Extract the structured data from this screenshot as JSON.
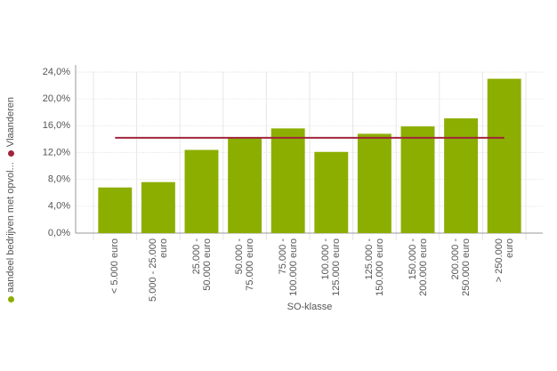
{
  "chart_data": {
    "type": "bar",
    "x_label": "SO-klasse",
    "categories": [
      "< 5.000 euro",
      "5.000 - 25.000 euro",
      "25.000 - 50.000 euro",
      "50.000 - 75.000 euro",
      "75.000 - 100.000 euro",
      "100.000 - 125.000 euro",
      "125.000 - 150.000 euro",
      "150.000 - 200.000 euro",
      "200.000 - 250.000 euro",
      "> 250.000 euro"
    ],
    "series": [
      {
        "name": "aandeel bedrijven met opvol...",
        "type": "bar",
        "color": "#8cae00",
        "values": [
          6.8,
          7.6,
          12.4,
          14.3,
          15.6,
          12.1,
          14.8,
          15.9,
          17.1,
          23.0
        ]
      },
      {
        "name": "Vlaanderen",
        "type": "line",
        "color": "#a1243c",
        "values": [
          14.2,
          14.2,
          14.2,
          14.2,
          14.2,
          14.2,
          14.2,
          14.2,
          14.2,
          14.2
        ]
      }
    ],
    "ylim": [
      0,
      24
    ],
    "yticks": [
      {
        "value": 0,
        "label": "0,0%"
      },
      {
        "value": 4,
        "label": "4,0%"
      },
      {
        "value": 8,
        "label": "8,0%"
      },
      {
        "value": 12,
        "label": "12,0%"
      },
      {
        "value": 16,
        "label": "16,0%"
      },
      {
        "value": 20,
        "label": "20,0%"
      },
      {
        "value": 24,
        "label": "24,0%"
      }
    ],
    "grid": true
  }
}
